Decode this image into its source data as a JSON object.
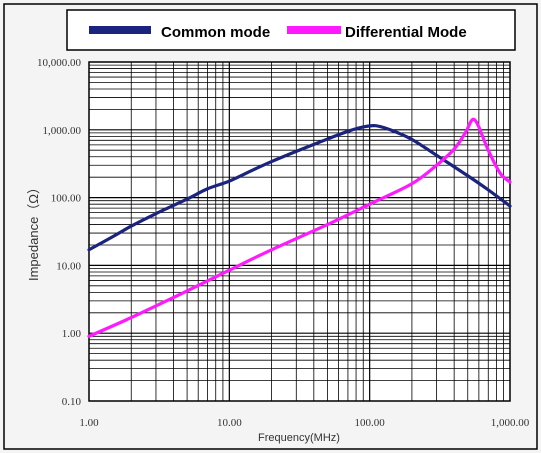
{
  "chart_data": {
    "type": "line",
    "xscale": "log",
    "yscale": "log",
    "xlabel": "Frequency(MHz)",
    "ylabel": "Impedance（Ω）",
    "xlim": [
      1,
      1000
    ],
    "ylim": [
      0.1,
      10000
    ],
    "grid": true,
    "legend_position": "top",
    "x_tick_labels": [
      "1.00",
      "10.00",
      "100.00",
      "1,000.00"
    ],
    "y_tick_labels": [
      "0.10",
      "1.00",
      "10.00",
      "100.00",
      "1,000.00",
      "10,000.00"
    ],
    "series": [
      {
        "name": "Common mode",
        "color": "#1a237e",
        "x": [
          1,
          1.5,
          2,
          3,
          5,
          7,
          10,
          15,
          20,
          30,
          50,
          70,
          90,
          110,
          140,
          200,
          300,
          500,
          700,
          1000
        ],
        "y": [
          17,
          27,
          38,
          58,
          95,
          135,
          175,
          260,
          340,
          480,
          730,
          950,
          1100,
          1150,
          1000,
          720,
          420,
          210,
          130,
          75
        ]
      },
      {
        "name": "Differential Mode",
        "color": "#ff19ff",
        "x": [
          1,
          2,
          5,
          10,
          20,
          50,
          100,
          200,
          300,
          400,
          480,
          530,
          560,
          600,
          700,
          850,
          1000
        ],
        "y": [
          0.9,
          1.7,
          4.2,
          8.5,
          17,
          40,
          80,
          160,
          300,
          520,
          900,
          1350,
          1400,
          1100,
          500,
          230,
          170
        ]
      }
    ]
  }
}
